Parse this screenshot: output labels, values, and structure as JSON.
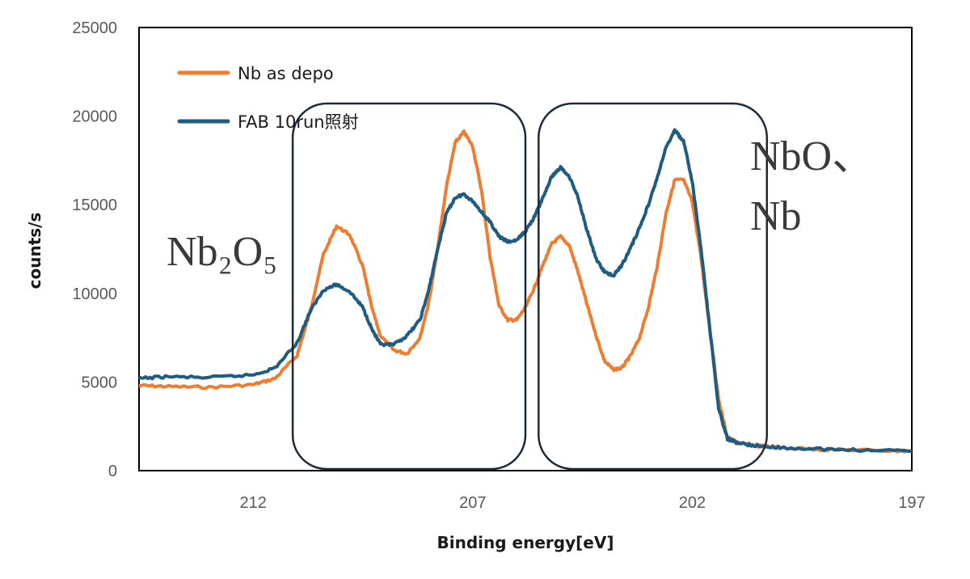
{
  "chart_data": {
    "type": "line",
    "xlabel": "Binding energy[eV]",
    "ylabel": "counts/s",
    "xlim": [
      214.6,
      197
    ],
    "x_reversed": true,
    "ylim": [
      0,
      25000
    ],
    "xticks": [
      212,
      207,
      202,
      197
    ],
    "yticks": [
      0,
      5000,
      10000,
      15000,
      20000,
      25000
    ],
    "grid": false,
    "legend_position": "top-left",
    "colors": {
      "Nb as depo": "#ED7D31",
      "FAB 10run照射": "#1F5C80",
      "box": "#1c2a3a"
    },
    "series": [
      {
        "name": "Nb as depo",
        "x": [
          214.6,
          214.0,
          213.0,
          212.0,
          211.5,
          211.0,
          210.7,
          210.4,
          210.1,
          209.8,
          209.5,
          209.3,
          209.1,
          208.8,
          208.5,
          208.2,
          208.0,
          207.8,
          207.6,
          207.4,
          207.2,
          207.0,
          206.8,
          206.6,
          206.4,
          206.2,
          206.0,
          205.8,
          205.6,
          205.4,
          205.2,
          205.0,
          204.8,
          204.6,
          204.4,
          204.2,
          204.0,
          203.8,
          203.6,
          203.4,
          203.2,
          203.0,
          202.8,
          202.6,
          202.4,
          202.2,
          202.0,
          201.8,
          201.6,
          201.4,
          201.2,
          201.0,
          200.8,
          200.5,
          200.0,
          199.0,
          198.0,
          197.0
        ],
        "y": [
          4800,
          4750,
          4700,
          4850,
          5200,
          6500,
          9000,
          12200,
          13800,
          13300,
          11500,
          9200,
          7600,
          6800,
          6600,
          7500,
          9500,
          12500,
          16000,
          18500,
          19100,
          18300,
          15800,
          12000,
          9300,
          8500,
          8500,
          9200,
          10300,
          11600,
          12800,
          13200,
          12700,
          11200,
          9400,
          7700,
          6200,
          5700,
          5800,
          6500,
          7500,
          9200,
          11500,
          14500,
          16400,
          16400,
          15200,
          12000,
          8000,
          4000,
          1900,
          1600,
          1500,
          1400,
          1300,
          1200,
          1150,
          1100
        ]
      },
      {
        "name": "FAB 10run照射",
        "x": [
          214.6,
          214.0,
          213.0,
          212.0,
          211.5,
          211.0,
          210.7,
          210.4,
          210.1,
          209.8,
          209.5,
          209.3,
          209.1,
          208.8,
          208.5,
          208.2,
          208.0,
          207.8,
          207.6,
          207.4,
          207.2,
          207.0,
          206.8,
          206.6,
          206.4,
          206.2,
          206.0,
          205.8,
          205.6,
          205.4,
          205.2,
          205.0,
          204.8,
          204.6,
          204.4,
          204.2,
          204.0,
          203.8,
          203.6,
          203.4,
          203.2,
          203.0,
          202.8,
          202.6,
          202.4,
          202.2,
          202.0,
          201.8,
          201.6,
          201.4,
          201.2,
          201.0,
          200.8,
          200.5,
          200.0,
          199.0,
          198.0,
          197.0
        ],
        "y": [
          5200,
          5300,
          5250,
          5400,
          5800,
          7200,
          9000,
          10200,
          10500,
          10100,
          9200,
          8000,
          7100,
          7100,
          7600,
          8500,
          10200,
          12500,
          14500,
          15400,
          15600,
          15200,
          14600,
          14000,
          13200,
          12900,
          13000,
          13500,
          14300,
          15400,
          16600,
          17100,
          16600,
          15400,
          13600,
          12000,
          11200,
          11000,
          11600,
          12600,
          13700,
          15000,
          16500,
          18200,
          19200,
          18600,
          16300,
          12500,
          8000,
          3500,
          1800,
          1600,
          1500,
          1400,
          1300,
          1200,
          1150,
          1100
        ]
      }
    ],
    "annotations": [
      {
        "kind": "text",
        "text": "Nb₂O₅",
        "region": "left of first box"
      },
      {
        "kind": "text",
        "lines": [
          "NbO、",
          "Nb"
        ],
        "region": "right of second box"
      },
      {
        "kind": "rounded-box",
        "x_range": [
          211.1,
          205.8
        ]
      },
      {
        "kind": "rounded-box",
        "x_range": [
          205.5,
          200.3
        ]
      }
    ]
  }
}
